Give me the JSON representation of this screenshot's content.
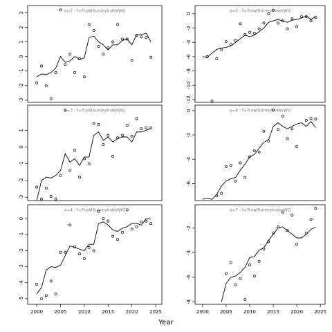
{
  "xlabel": "Year",
  "chart_data": [
    {
      "type": "line",
      "title": "a=2  :  f=TrawlSurveyIndexWG",
      "color": "#000000",
      "x": [
        2000,
        2001,
        2002,
        2003,
        2004,
        2005,
        2006,
        2007,
        2008,
        2009,
        2010,
        2011,
        2012,
        2013,
        2014,
        2015,
        2016,
        2017,
        2018,
        2019,
        2020,
        2021,
        2022,
        2023,
        2024
      ],
      "points": [
        -1.8,
        -0.65,
        -2.0,
        -2.9,
        -1.1,
        3.2,
        -0.55,
        0.15,
        -1.1,
        -0.15,
        -1.4,
        2.2,
        1.8,
        0.7,
        0.15,
        0.6,
        1.0,
        2.2,
        1.2,
        1.2,
        -0.25,
        1.45,
        1.35,
        1.3,
        -0.05
      ],
      "fitted": [
        -1.4,
        -1.2,
        -1.25,
        -1.1,
        -0.8,
        0.0,
        -0.4,
        -0.3,
        0.0,
        -0.2,
        -0.1,
        1.3,
        1.4,
        1.0,
        0.8,
        0.45,
        0.8,
        0.8,
        1.1,
        1.2,
        0.8,
        1.5,
        1.5,
        1.6,
        1.0
      ],
      "xlim": [
        1998.1,
        2026.3
      ],
      "ylim": [
        -3.15,
        3.5
      ],
      "yticks": [
        -3,
        -2,
        -1,
        0,
        1,
        2,
        3
      ]
    },
    {
      "type": "line",
      "title": "a=5  :  f=TrawlSurveyIndexWG",
      "color": "#000000",
      "x": [
        2000,
        2001,
        2002,
        2003,
        2004,
        2005,
        2006,
        2007,
        2008,
        2009,
        2010,
        2011,
        2012,
        2013,
        2014,
        2015,
        2016,
        2017,
        2018,
        2019,
        2020,
        2021,
        2022,
        2023,
        2024
      ],
      "points": [
        null,
        -6.0,
        -12.2,
        -6.3,
        -5.0,
        -3.9,
        -4.3,
        -3.7,
        -1.4,
        -2.9,
        -2.6,
        -2.7,
        -2.1,
        -1.3,
        0.0,
        0.5,
        -1.3,
        -1.0,
        -2.1,
        -0.7,
        -1.8,
        -0.4,
        -0.4,
        -1.0,
        -0.5
      ],
      "fitted": [
        -6.0,
        -6.1,
        -5.5,
        -5.0,
        -4.8,
        -4.7,
        -4.5,
        -4.0,
        -3.5,
        -3.0,
        -3.2,
        -3.0,
        -2.5,
        -2.0,
        -1.2,
        -1.0,
        -0.8,
        -1.0,
        -1.2,
        -0.9,
        -0.8,
        -0.6,
        -0.3,
        -0.8,
        -0.4
      ],
      "xlim": [
        1998.4,
        2026.0
      ],
      "ylim": [
        -12.4,
        1.15
      ],
      "yticks": [
        -12,
        -10,
        -8,
        -6,
        -4,
        -2,
        0
      ]
    },
    {
      "type": "line",
      "title": "a=3  :  f=TrawlSurveyIndexWG",
      "color": "#000000",
      "x": [
        2000,
        2001,
        2002,
        2003,
        2004,
        2005,
        2006,
        2007,
        2008,
        2009,
        2010,
        2011,
        2012,
        2013,
        2014,
        2015,
        2016,
        2017,
        2018,
        2019,
        2020,
        2021,
        2022,
        2023,
        2024
      ],
      "points": [
        -2.4,
        -3.1,
        -2.45,
        -2.95,
        -3.1,
        -1.7,
        2.2,
        -1.4,
        -0.2,
        -1.8,
        -0.7,
        -1.0,
        1.4,
        1.35,
        0.15,
        0.7,
        -0.55,
        0.55,
        0.7,
        1.3,
        0.65,
        1.7,
        1.1,
        1.15,
        1.15
      ],
      "fitted": [
        -3.2,
        -2.0,
        -1.8,
        -1.85,
        -1.7,
        -1.4,
        -0.4,
        -0.9,
        -0.7,
        -1.1,
        -0.6,
        -0.6,
        0.7,
        0.9,
        0.4,
        0.6,
        0.3,
        0.5,
        0.6,
        0.6,
        0.3,
        0.9,
        0.9,
        1.0,
        1.1
      ],
      "xlim": [
        1998.1,
        2026.3
      ],
      "ylim": [
        -3.2,
        2.5
      ],
      "yticks": [
        -3,
        -2,
        -1,
        0,
        1
      ]
    },
    {
      "type": "line",
      "title": "a=6  :  f=TrawlSurveyIndexWG",
      "color": "#000000",
      "x": [
        2000,
        2001,
        2002,
        2003,
        2004,
        2005,
        2006,
        2007,
        2008,
        2009,
        2010,
        2011,
        2012,
        2013,
        2014,
        2015,
        2016,
        2017,
        2018,
        2019,
        2020,
        2021,
        2022,
        2023,
        2024
      ],
      "points": [
        null,
        null,
        null,
        -7.0,
        -6.8,
        -4.6,
        -4.5,
        -5.8,
        -4.3,
        -5.5,
        -3.8,
        -3.3,
        -3.4,
        -1.7,
        -2.5,
        0.05,
        -1.55,
        -0.45,
        -2.3,
        -1.5,
        -2.95,
        null,
        -0.8,
        -0.65,
        -0.7
      ],
      "fitted": [
        -7.3,
        -7.2,
        -7.3,
        -6.9,
        -6.2,
        -5.8,
        -5.6,
        -5.5,
        -4.9,
        -4.4,
        -3.8,
        -3.6,
        -3.1,
        -2.6,
        -2.4,
        -1.3,
        -1.0,
        -1.3,
        -1.5,
        -1.3,
        -1.1,
        -1.0,
        -1.3,
        -0.9,
        -1.4
      ],
      "xlim": [
        1998.4,
        2026.0
      ],
      "ylim": [
        -7.4,
        0.45
      ],
      "yticks": [
        -6,
        -4,
        -2,
        0
      ]
    },
    {
      "type": "line",
      "title": "a=4  :  f=TrawlSurveyIndexWG",
      "color": "#000000",
      "x": [
        2000,
        2001,
        2002,
        2003,
        2004,
        2005,
        2006,
        2007,
        2008,
        2009,
        2010,
        2011,
        2012,
        2013,
        2014,
        2015,
        2016,
        2017,
        2018,
        2019,
        2020,
        2021,
        2022,
        2023,
        2024
      ],
      "points": [
        -4.1,
        -5.0,
        -4.8,
        -3.9,
        -4.7,
        -2.1,
        -2.1,
        -0.4,
        -1.75,
        -2.2,
        -2.5,
        -1.8,
        -2.0,
        0.45,
        0.0,
        -0.15,
        -1.1,
        -1.3,
        -0.85,
        0.55,
        -0.65,
        -0.5,
        -0.2,
        -0.15,
        -0.3
      ],
      "fitted": [
        -4.7,
        -4.3,
        -3.2,
        -3.0,
        -3.05,
        -2.9,
        -2.3,
        -1.7,
        -1.8,
        -1.9,
        -2.0,
        -1.6,
        -1.6,
        -0.3,
        -0.2,
        -0.4,
        -0.7,
        -0.8,
        -0.6,
        -0.5,
        -0.3,
        -0.3,
        -0.4,
        0.0,
        0.0
      ],
      "xlim": [
        1998.1,
        2026.3
      ],
      "ylim": [
        -5.35,
        0.87
      ],
      "yticks": [
        -5,
        -4,
        -3,
        -2,
        -1,
        0
      ],
      "xticks": [
        2000,
        2005,
        2010,
        2015,
        2020,
        2025
      ]
    },
    {
      "type": "line",
      "title": "a=7  :  f=TrawlSurveyIndexWG",
      "color": "#000000",
      "x": [
        2000,
        2001,
        2002,
        2003,
        2004,
        2005,
        2006,
        2007,
        2008,
        2009,
        2010,
        2011,
        2012,
        2013,
        2014,
        2015,
        2016,
        2017,
        2018,
        2019,
        2020,
        2021,
        2022,
        2023,
        2024
      ],
      "points": [
        null,
        null,
        null,
        null,
        null,
        -5.7,
        -4.8,
        -6.6,
        -6.1,
        -7.8,
        -5.0,
        -5.9,
        -4.7,
        -3.7,
        -3.1,
        -2.4,
        -1.9,
        -0.7,
        -2.2,
        -0.95,
        -3.3,
        null,
        -2.4,
        -1.3,
        -0.4
      ],
      "fitted": [
        null,
        null,
        null,
        null,
        -8.0,
        -6.5,
        -6.0,
        -5.9,
        -5.6,
        -5.2,
        -4.4,
        -4.3,
        -3.8,
        -3.6,
        -3.0,
        -2.5,
        -2.0,
        -1.9,
        -2.2,
        -2.5,
        -2.8,
        -2.8,
        -2.5,
        -2.1,
        -1.9
      ],
      "xlim": [
        1998.4,
        2026.0
      ],
      "ylim": [
        -8.2,
        -0.1
      ],
      "yticks": [
        -8,
        -6,
        -4,
        -2
      ],
      "xticks": [
        2000,
        2005,
        2010,
        2015,
        2020,
        2025
      ]
    }
  ]
}
